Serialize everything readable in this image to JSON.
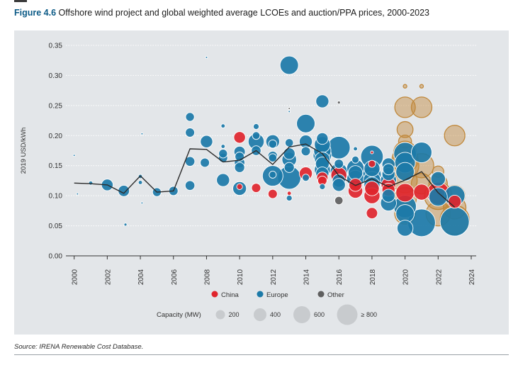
{
  "figure": {
    "number": "Figure 4.6",
    "title": "Offshore wind project and global weighted average LCOEs and auction/PPA prices, 2000-2023"
  },
  "source": "Source: IRENA Renewable Cost Database.",
  "colors": {
    "China": "#e0252d",
    "Europe": "#1c7aa8",
    "Other": "#5f5f5f",
    "auction": "#c0883a",
    "line": "#2b2b2b",
    "panel": "#e3e6e9"
  },
  "legend": {
    "series": [
      "China",
      "Europe",
      "Other"
    ],
    "capacity_label": "Capacity (MW)",
    "capacity_sizes": [
      "200",
      "400",
      "600",
      "≥ 800"
    ]
  },
  "chart_data": {
    "type": "scatter",
    "ylabel": "2019 USD/kWh",
    "xlabel": "",
    "xlim": [
      1999.5,
      2024.3
    ],
    "ylim": [
      0,
      0.35
    ],
    "x_ticks": [
      "2000",
      "2002",
      "2004",
      "2006",
      "2008",
      "2010",
      "2012",
      "2014",
      "2016",
      "2018",
      "2020",
      "2022",
      "2024"
    ],
    "y_ticks": [
      "0.00",
      "0.05",
      "0.10",
      "0.15",
      "0.20",
      "0.25",
      "0.30",
      "0.35"
    ],
    "weighted_average_line": [
      [
        2000,
        0.121
      ],
      [
        2001,
        0.12
      ],
      [
        2002,
        0.118
      ],
      [
        2003,
        0.104
      ],
      [
        2004,
        0.133
      ],
      [
        2005,
        0.106
      ],
      [
        2006,
        0.108
      ],
      [
        2007,
        0.178
      ],
      [
        2008,
        0.177
      ],
      [
        2009,
        0.156
      ],
      [
        2010,
        0.159
      ],
      [
        2011,
        0.175
      ],
      [
        2012,
        0.152
      ],
      [
        2013,
        0.181
      ],
      [
        2014,
        0.186
      ],
      [
        2015,
        0.17
      ],
      [
        2016,
        0.133
      ],
      [
        2017,
        0.117
      ],
      [
        2018,
        0.128
      ],
      [
        2019,
        0.115
      ],
      [
        2020,
        0.126
      ],
      [
        2021,
        0.14
      ],
      [
        2022,
        0.105
      ],
      [
        2023,
        0.081
      ]
    ],
    "projects": [
      {
        "x": 2000.0,
        "y": 0.167,
        "cap": 5,
        "r": "Europe"
      },
      {
        "x": 2000.2,
        "y": 0.103,
        "cap": 5,
        "r": "Europe"
      },
      {
        "x": 2001.0,
        "y": 0.121,
        "cap": 20,
        "r": "Europe"
      },
      {
        "x": 2002.0,
        "y": 0.118,
        "cap": 160,
        "r": "Europe"
      },
      {
        "x": 2003.0,
        "y": 0.108,
        "cap": 150,
        "r": "Europe"
      },
      {
        "x": 2003.1,
        "y": 0.052,
        "cap": 10,
        "r": "Europe"
      },
      {
        "x": 2004.0,
        "y": 0.132,
        "cap": 20,
        "r": "Europe"
      },
      {
        "x": 2004.0,
        "y": 0.122,
        "cap": 20,
        "r": "Europe"
      },
      {
        "x": 2004.1,
        "y": 0.088,
        "cap": 5,
        "r": "Europe"
      },
      {
        "x": 2004.1,
        "y": 0.203,
        "cap": 5,
        "r": "Europe"
      },
      {
        "x": 2005.0,
        "y": 0.106,
        "cap": 90,
        "r": "Europe"
      },
      {
        "x": 2006.0,
        "y": 0.108,
        "cap": 100,
        "r": "Europe"
      },
      {
        "x": 2007.0,
        "y": 0.231,
        "cap": 90,
        "r": "Europe"
      },
      {
        "x": 2007.0,
        "y": 0.205,
        "cap": 100,
        "r": "Europe"
      },
      {
        "x": 2007.0,
        "y": 0.157,
        "cap": 110,
        "r": "Europe"
      },
      {
        "x": 2007.0,
        "y": 0.117,
        "cap": 110,
        "r": "Europe"
      },
      {
        "x": 2007.9,
        "y": 0.155,
        "cap": 100,
        "r": "Europe"
      },
      {
        "x": 2008.0,
        "y": 0.19,
        "cap": 180,
        "r": "Europe"
      },
      {
        "x": 2008.0,
        "y": 0.33,
        "cap": 5,
        "r": "Europe"
      },
      {
        "x": 2009.0,
        "y": 0.216,
        "cap": 20,
        "r": "Europe"
      },
      {
        "x": 2009.0,
        "y": 0.182,
        "cap": 20,
        "r": "Europe"
      },
      {
        "x": 2009.0,
        "y": 0.17,
        "cap": 90,
        "r": "Europe"
      },
      {
        "x": 2009.0,
        "y": 0.163,
        "cap": 100,
        "r": "Europe"
      },
      {
        "x": 2009.0,
        "y": 0.126,
        "cap": 200,
        "r": "Europe"
      },
      {
        "x": 2010.0,
        "y": 0.197,
        "cap": 160,
        "r": "China"
      },
      {
        "x": 2010.0,
        "y": 0.173,
        "cap": 150,
        "r": "Europe"
      },
      {
        "x": 2010.0,
        "y": 0.165,
        "cap": 100,
        "r": "Europe"
      },
      {
        "x": 2010.0,
        "y": 0.155,
        "cap": 130,
        "r": "Europe"
      },
      {
        "x": 2010.0,
        "y": 0.147,
        "cap": 120,
        "r": "Europe"
      },
      {
        "x": 2010.0,
        "y": 0.112,
        "cap": 220,
        "r": "Europe"
      },
      {
        "x": 2010.0,
        "y": 0.115,
        "cap": 40,
        "r": "China"
      },
      {
        "x": 2011.0,
        "y": 0.215,
        "cap": 40,
        "r": "Europe"
      },
      {
        "x": 2011.0,
        "y": 0.2,
        "cap": 70,
        "r": "Europe"
      },
      {
        "x": 2011.0,
        "y": 0.19,
        "cap": 300,
        "r": "Europe"
      },
      {
        "x": 2011.0,
        "y": 0.175,
        "cap": 110,
        "r": "Europe"
      },
      {
        "x": 2011.0,
        "y": 0.113,
        "cap": 100,
        "r": "China"
      },
      {
        "x": 2012.0,
        "y": 0.19,
        "cap": 220,
        "r": "Europe"
      },
      {
        "x": 2012.0,
        "y": 0.186,
        "cap": 80,
        "r": "Europe"
      },
      {
        "x": 2012.0,
        "y": 0.166,
        "cap": 110,
        "r": "Europe"
      },
      {
        "x": 2012.0,
        "y": 0.163,
        "cap": 80,
        "r": "Europe"
      },
      {
        "x": 2012.0,
        "y": 0.135,
        "cap": 60,
        "r": "Europe"
      },
      {
        "x": 2012.0,
        "y": 0.133,
        "cap": 500,
        "r": "Europe"
      },
      {
        "x": 2012.0,
        "y": 0.103,
        "cap": 100,
        "r": "China"
      },
      {
        "x": 2013.0,
        "y": 0.317,
        "cap": 400,
        "r": "Europe"
      },
      {
        "x": 2013.0,
        "y": 0.245,
        "cap": 5,
        "r": "Other"
      },
      {
        "x": 2013.0,
        "y": 0.24,
        "cap": 5,
        "r": "Europe"
      },
      {
        "x": 2013.0,
        "y": 0.188,
        "cap": 80,
        "r": "Europe"
      },
      {
        "x": 2013.0,
        "y": 0.17,
        "cap": 160,
        "r": "Europe"
      },
      {
        "x": 2013.0,
        "y": 0.16,
        "cap": 250,
        "r": "Europe"
      },
      {
        "x": 2013.0,
        "y": 0.147,
        "cap": 120,
        "r": "Europe"
      },
      {
        "x": 2013.0,
        "y": 0.13,
        "cap": 630,
        "r": "Europe"
      },
      {
        "x": 2013.0,
        "y": 0.104,
        "cap": 20,
        "r": "China"
      },
      {
        "x": 2013.0,
        "y": 0.096,
        "cap": 40,
        "r": "Europe"
      },
      {
        "x": 2014.0,
        "y": 0.22,
        "cap": 400,
        "r": "Europe"
      },
      {
        "x": 2014.0,
        "y": 0.19,
        "cap": 200,
        "r": "Europe"
      },
      {
        "x": 2014.0,
        "y": 0.174,
        "cap": 100,
        "r": "Europe"
      },
      {
        "x": 2014.0,
        "y": 0.137,
        "cap": 200,
        "r": "China"
      },
      {
        "x": 2014.0,
        "y": 0.13,
        "cap": 60,
        "r": "Europe"
      },
      {
        "x": 2015.0,
        "y": 0.257,
        "cap": 200,
        "r": "Europe"
      },
      {
        "x": 2015.0,
        "y": 0.195,
        "cap": 160,
        "r": "Europe"
      },
      {
        "x": 2015.0,
        "y": 0.185,
        "cap": 300,
        "r": "Europe"
      },
      {
        "x": 2015.0,
        "y": 0.175,
        "cap": 350,
        "r": "Europe"
      },
      {
        "x": 2015.0,
        "y": 0.167,
        "cap": 400,
        "r": "Europe"
      },
      {
        "x": 2015.0,
        "y": 0.16,
        "cap": 280,
        "r": "Europe"
      },
      {
        "x": 2015.0,
        "y": 0.153,
        "cap": 220,
        "r": "Europe"
      },
      {
        "x": 2015.0,
        "y": 0.143,
        "cap": 300,
        "r": "Europe"
      },
      {
        "x": 2015.0,
        "y": 0.137,
        "cap": 200,
        "r": "Europe"
      },
      {
        "x": 2015.0,
        "y": 0.13,
        "cap": 150,
        "r": "China"
      },
      {
        "x": 2015.0,
        "y": 0.125,
        "cap": 100,
        "r": "China"
      },
      {
        "x": 2015.0,
        "y": 0.115,
        "cap": 40,
        "r": "Europe"
      },
      {
        "x": 2016.0,
        "y": 0.255,
        "cap": 10,
        "r": "Other"
      },
      {
        "x": 2016.0,
        "y": 0.18,
        "cap": 600,
        "r": "Europe"
      },
      {
        "x": 2016.0,
        "y": 0.153,
        "cap": 100,
        "r": "Europe"
      },
      {
        "x": 2016.0,
        "y": 0.14,
        "cap": 350,
        "r": "Europe"
      },
      {
        "x": 2016.0,
        "y": 0.134,
        "cap": 300,
        "r": "China"
      },
      {
        "x": 2016.0,
        "y": 0.125,
        "cap": 200,
        "r": "Europe"
      },
      {
        "x": 2016.0,
        "y": 0.118,
        "cap": 200,
        "r": "Europe"
      },
      {
        "x": 2016.0,
        "y": 0.092,
        "cap": 80,
        "r": "Other"
      },
      {
        "x": 2017.0,
        "y": 0.178,
        "cap": 20,
        "r": "Europe"
      },
      {
        "x": 2017.0,
        "y": 0.16,
        "cap": 60,
        "r": "Europe"
      },
      {
        "x": 2017.0,
        "y": 0.146,
        "cap": 350,
        "r": "Europe"
      },
      {
        "x": 2017.0,
        "y": 0.138,
        "cap": 250,
        "r": "Europe"
      },
      {
        "x": 2017.0,
        "y": 0.128,
        "cap": 350,
        "r": "Europe"
      },
      {
        "x": 2017.0,
        "y": 0.118,
        "cap": 200,
        "r": "China"
      },
      {
        "x": 2017.0,
        "y": 0.108,
        "cap": 250,
        "r": "China"
      },
      {
        "x": 2018.0,
        "y": 0.172,
        "cap": 10,
        "r": "China"
      },
      {
        "x": 2018.0,
        "y": 0.165,
        "cap": 600,
        "r": "Europe"
      },
      {
        "x": 2018.0,
        "y": 0.153,
        "cap": 60,
        "r": "China"
      },
      {
        "x": 2018.0,
        "y": 0.145,
        "cap": 300,
        "r": "Europe"
      },
      {
        "x": 2018.0,
        "y": 0.135,
        "cap": 400,
        "r": "Europe"
      },
      {
        "x": 2018.0,
        "y": 0.126,
        "cap": 350,
        "r": "Europe"
      },
      {
        "x": 2018.0,
        "y": 0.118,
        "cap": 300,
        "r": "Europe"
      },
      {
        "x": 2018.0,
        "y": 0.112,
        "cap": 250,
        "r": "China"
      },
      {
        "x": 2018.0,
        "y": 0.1,
        "cap": 300,
        "r": "China"
      },
      {
        "x": 2018.0,
        "y": 0.071,
        "cap": 150,
        "r": "China"
      },
      {
        "x": 2019.0,
        "y": 0.152,
        "cap": 200,
        "r": "Europe"
      },
      {
        "x": 2019.0,
        "y": 0.144,
        "cap": 150,
        "r": "Europe"
      },
      {
        "x": 2019.0,
        "y": 0.136,
        "cap": 200,
        "r": "Europe"
      },
      {
        "x": 2019.0,
        "y": 0.126,
        "cap": 300,
        "r": "Europe"
      },
      {
        "x": 2019.0,
        "y": 0.118,
        "cap": 250,
        "r": "China"
      },
      {
        "x": 2019.0,
        "y": 0.11,
        "cap": 200,
        "r": "China"
      },
      {
        "x": 2019.0,
        "y": 0.1,
        "cap": 200,
        "r": "Europe"
      },
      {
        "x": 2019.0,
        "y": 0.088,
        "cap": 300,
        "r": "Europe"
      },
      {
        "x": 2020.0,
        "y": 0.17,
        "cap": 600,
        "r": "Europe"
      },
      {
        "x": 2020.0,
        "y": 0.155,
        "cap": 500,
        "r": "Europe"
      },
      {
        "x": 2020.0,
        "y": 0.14,
        "cap": 400,
        "r": "Europe"
      },
      {
        "x": 2020.0,
        "y": 0.105,
        "cap": 400,
        "r": "China"
      },
      {
        "x": 2020.0,
        "y": 0.082,
        "cap": 600,
        "r": "Europe"
      },
      {
        "x": 2020.0,
        "y": 0.07,
        "cap": 400,
        "r": "Europe"
      },
      {
        "x": 2020.0,
        "y": 0.046,
        "cap": 300,
        "r": "Europe"
      },
      {
        "x": 2021.0,
        "y": 0.172,
        "cap": 500,
        "r": "Europe"
      },
      {
        "x": 2021.0,
        "y": 0.106,
        "cap": 300,
        "r": "China"
      },
      {
        "x": 2021.0,
        "y": 0.055,
        "cap": 900,
        "r": "Europe"
      },
      {
        "x": 2022.0,
        "y": 0.128,
        "cap": 250,
        "r": "Europe"
      },
      {
        "x": 2022.0,
        "y": 0.104,
        "cap": 600,
        "r": "China"
      },
      {
        "x": 2022.0,
        "y": 0.098,
        "cap": 400,
        "r": "Europe"
      },
      {
        "x": 2023.0,
        "y": 0.1,
        "cap": 500,
        "r": "Europe"
      },
      {
        "x": 2023.0,
        "y": 0.09,
        "cap": 200,
        "r": "China"
      },
      {
        "x": 2023.0,
        "y": 0.057,
        "cap": 1000,
        "r": "Europe"
      }
    ],
    "auction_prices": [
      {
        "x": 2020.0,
        "y": 0.282,
        "cap": 15
      },
      {
        "x": 2020.0,
        "y": 0.247,
        "cap": 500
      },
      {
        "x": 2020.0,
        "y": 0.21,
        "cap": 300
      },
      {
        "x": 2020.0,
        "y": 0.19,
        "cap": 200
      },
      {
        "x": 2020.0,
        "y": 0.172,
        "cap": 600
      },
      {
        "x": 2020.0,
        "y": 0.16,
        "cap": 800
      },
      {
        "x": 2020.0,
        "y": 0.15,
        "cap": 900
      },
      {
        "x": 2020.0,
        "y": 0.125,
        "cap": 700
      },
      {
        "x": 2020.0,
        "y": 0.095,
        "cap": 600
      },
      {
        "x": 2020.0,
        "y": 0.07,
        "cap": 500
      },
      {
        "x": 2021.0,
        "y": 0.282,
        "cap": 15
      },
      {
        "x": 2021.0,
        "y": 0.247,
        "cap": 500
      },
      {
        "x": 2021.0,
        "y": 0.15,
        "cap": 700
      },
      {
        "x": 2021.0,
        "y": 0.12,
        "cap": 500
      },
      {
        "x": 2022.0,
        "y": 0.14,
        "cap": 150
      },
      {
        "x": 2022.0,
        "y": 0.12,
        "cap": 400
      },
      {
        "x": 2022.0,
        "y": 0.1,
        "cap": 900
      },
      {
        "x": 2022.0,
        "y": 0.07,
        "cap": 700
      },
      {
        "x": 2023.0,
        "y": 0.2,
        "cap": 500
      },
      {
        "x": 2023.0,
        "y": 0.1,
        "cap": 500
      },
      {
        "x": 2023.0,
        "y": 0.08,
        "cap": 600
      },
      {
        "x": 2023.0,
        "y": 0.06,
        "cap": 1000
      }
    ]
  }
}
